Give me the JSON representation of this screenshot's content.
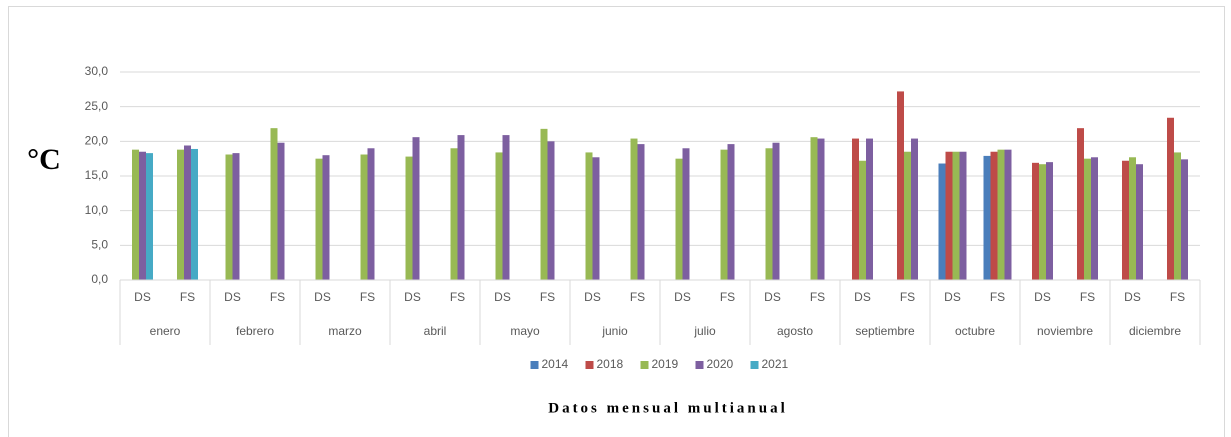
{
  "chart_data": {
    "type": "bar",
    "ylabel": "°C",
    "xlabel": "Datos mensual multianual",
    "categories": [
      "DS",
      "FS",
      "DS",
      "FS",
      "DS",
      "FS",
      "DS",
      "FS",
      "DS",
      "FS",
      "DS",
      "FS",
      "DS",
      "FS",
      "DS",
      "FS",
      "DS",
      "FS",
      "DS",
      "FS",
      "DS",
      "FS",
      "DS",
      "FS"
    ],
    "groups": [
      "enero",
      "febrero",
      "marzo",
      "abril",
      "mayo",
      "junio",
      "julio",
      "agosto",
      "septiembre",
      "octubre",
      "noviembre",
      "diciembre"
    ],
    "series": [
      {
        "name": "2014",
        "color": "#4a7ebb",
        "values": [
          null,
          null,
          null,
          null,
          null,
          null,
          null,
          null,
          null,
          null,
          null,
          null,
          null,
          null,
          null,
          null,
          null,
          null,
          16.8,
          17.9,
          null,
          null,
          null,
          null
        ]
      },
      {
        "name": "2018",
        "color": "#be4b48",
        "values": [
          null,
          null,
          null,
          null,
          null,
          null,
          null,
          null,
          null,
          null,
          null,
          null,
          null,
          null,
          null,
          null,
          20.4,
          27.2,
          18.5,
          18.5,
          16.9,
          21.9,
          17.2,
          23.4
        ]
      },
      {
        "name": "2019",
        "color": "#98b954",
        "values": [
          18.8,
          18.8,
          18.1,
          21.9,
          17.5,
          18.1,
          17.8,
          19.0,
          18.4,
          21.8,
          18.4,
          20.4,
          17.5,
          18.8,
          19.0,
          20.6,
          17.2,
          18.5,
          18.5,
          18.8,
          16.7,
          17.5,
          17.7,
          18.4
        ]
      },
      {
        "name": "2020",
        "color": "#7d5fa0",
        "values": [
          18.5,
          19.4,
          18.3,
          19.8,
          18.0,
          19.0,
          20.6,
          20.9,
          20.9,
          20.0,
          17.7,
          19.6,
          19.0,
          19.6,
          19.8,
          20.4,
          20.4,
          20.4,
          18.5,
          18.8,
          17.0,
          17.7,
          16.7,
          17.4
        ]
      },
      {
        "name": "2021",
        "color": "#46aac5",
        "values": [
          18.3,
          18.9,
          null,
          null,
          null,
          null,
          null,
          null,
          null,
          null,
          null,
          null,
          null,
          null,
          null,
          null,
          null,
          null,
          null,
          null,
          null,
          null,
          null,
          null
        ]
      }
    ],
    "ylim": [
      0,
      30
    ],
    "yticks": [
      {
        "value": 0,
        "label": "0,0"
      },
      {
        "value": 5,
        "label": "5,0"
      },
      {
        "value": 10,
        "label": "10,0"
      },
      {
        "value": 15,
        "label": "15,0"
      },
      {
        "value": 20,
        "label": "20,0"
      },
      {
        "value": 25,
        "label": "25,0"
      },
      {
        "value": 30,
        "label": "30,0"
      }
    ],
    "grid": true,
    "legend": "bottom"
  }
}
